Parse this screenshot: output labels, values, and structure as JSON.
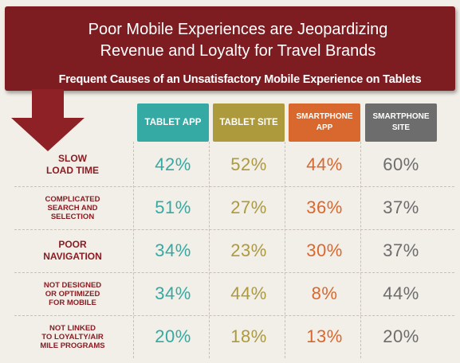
{
  "header": {
    "title_line1": "Poor Mobile Experiences are Jeopardizing",
    "title_line2": "Revenue and Loyalty for Travel Brands",
    "subtitle": "Frequent Causes of an Unsatisfactory Mobile Experience on Tablets"
  },
  "colors": {
    "banner": "#7d1d22",
    "arrow": "#8e2125",
    "row_label": "#8b1c22",
    "tablet_app": "#35a9a3",
    "tablet_site": "#ad9a3c",
    "smartphone_app": "#d9682e",
    "smartphone_site": "#6d6d6d"
  },
  "columns": [
    {
      "label": "TABLET APP",
      "color_key": "tablet_app"
    },
    {
      "label": "TABLET SITE",
      "color_key": "tablet_site"
    },
    {
      "label": "SMARTPHONE\nAPP",
      "color_key": "smartphone_app"
    },
    {
      "label": "SMARTPHONE\nSITE",
      "color_key": "smartphone_site"
    }
  ],
  "rows": [
    {
      "label": "SLOW\nLOAD TIME",
      "values": [
        "42%",
        "52%",
        "44%",
        "60%"
      ]
    },
    {
      "label": "COMPLICATED\nSEARCH AND\nSELECTION",
      "values": [
        "51%",
        "27%",
        "36%",
        "37%"
      ]
    },
    {
      "label": "POOR\nNAVIGATION",
      "values": [
        "34%",
        "23%",
        "30%",
        "37%"
      ]
    },
    {
      "label": "NOT DESIGNED\nOR OPTIMIZED\nFOR MOBILE",
      "values": [
        "34%",
        "44%",
        "8%",
        "44%"
      ]
    },
    {
      "label": "NOT LINKED\nTO LOYALTY/AIR\nMILE PROGRAMS",
      "values": [
        "20%",
        "18%",
        "13%",
        "20%"
      ]
    }
  ],
  "chart_data": {
    "type": "table",
    "title": "Poor Mobile Experiences are Jeopardizing Revenue and Loyalty for Travel Brands",
    "subtitle": "Frequent Causes of an Unsatisfactory Mobile Experience on Tablets",
    "categories": [
      "SLOW LOAD TIME",
      "COMPLICATED SEARCH AND SELECTION",
      "POOR NAVIGATION",
      "NOT DESIGNED OR OPTIMIZED FOR MOBILE",
      "NOT LINKED TO LOYALTY/AIR MILE PROGRAMS"
    ],
    "series": [
      {
        "name": "TABLET APP",
        "values": [
          42,
          51,
          34,
          34,
          20
        ]
      },
      {
        "name": "TABLET SITE",
        "values": [
          52,
          27,
          23,
          44,
          18
        ]
      },
      {
        "name": "SMARTPHONE APP",
        "values": [
          44,
          36,
          30,
          8,
          13
        ]
      },
      {
        "name": "SMARTPHONE SITE",
        "values": [
          60,
          37,
          37,
          44,
          20
        ]
      }
    ],
    "unit": "%"
  }
}
